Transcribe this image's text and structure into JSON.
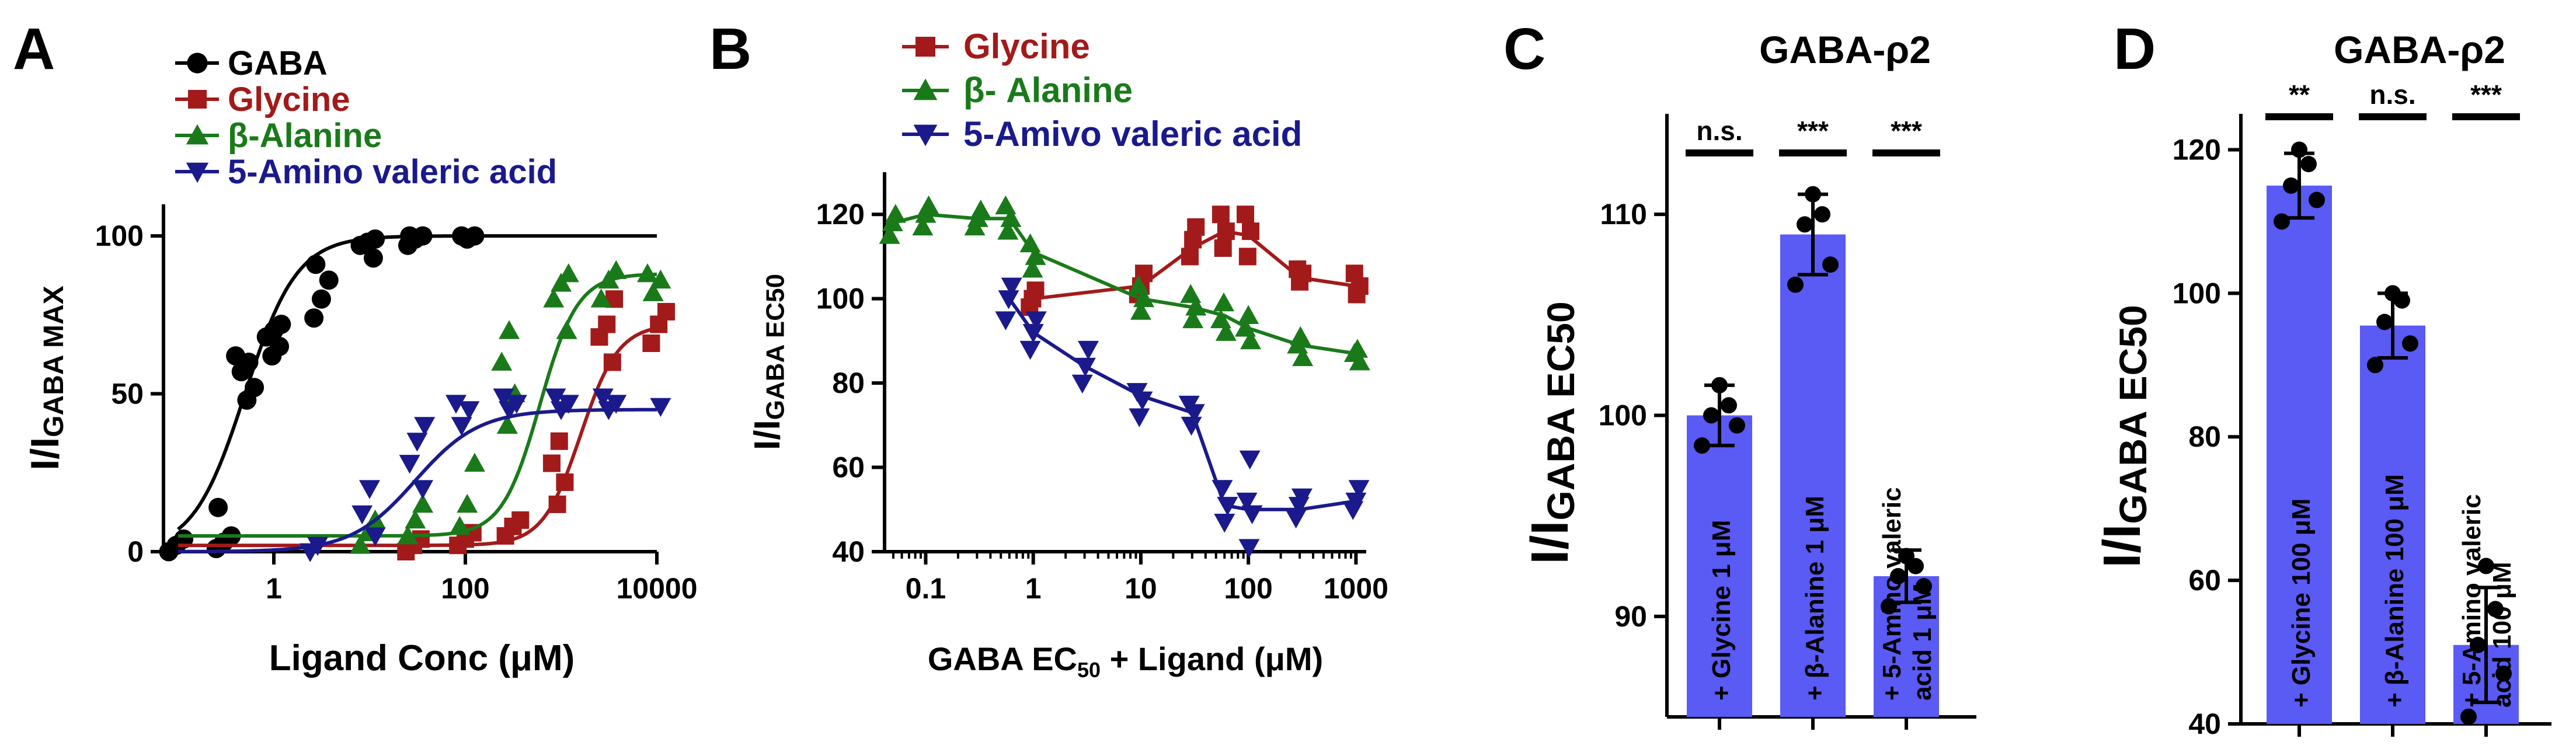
{
  "panel_letters": {
    "a": "A",
    "b": "B",
    "c": "C",
    "d": "D"
  },
  "colors": {
    "black": "#000000",
    "red": "#a31a1a",
    "green": "#1a7a1a",
    "blue": "#1a1a8c",
    "bar": "#5a5af5"
  },
  "chart_data": [
    {
      "id": "A",
      "type": "scatter",
      "title": "",
      "xscale": "log",
      "xlabel": "Ligand Conc (μM)",
      "ylabel_main": "I/I",
      "ylabel_sub": "GABA MAX",
      "xlim": [
        0.1,
        10000
      ],
      "ylim": [
        0,
        110
      ],
      "xticks": [
        1,
        100,
        10000
      ],
      "xtick_labels": [
        "1",
        "100",
        "10000"
      ],
      "yticks": [
        0,
        50,
        100
      ],
      "ytick_labels": [
        "0",
        "50",
        "100"
      ],
      "legend": {
        "position": "top-left",
        "entries": [
          "GABA",
          "Glycine",
          "β-Alanine",
          "5-Amino valeric acid"
        ]
      },
      "series": [
        {
          "name": "GABA",
          "color": "#000000",
          "marker": "circle",
          "x": [
            0.1,
            0.1,
            0.1,
            0.3,
            0.3,
            0.3,
            0.3,
            0.5,
            0.5,
            0.5,
            0.5,
            0.5,
            1,
            1,
            1,
            1,
            1,
            3,
            3,
            3,
            3,
            10,
            10,
            10,
            10,
            30,
            30,
            30,
            30,
            100,
            100,
            100
          ],
          "y": [
            0,
            2,
            4,
            1,
            3,
            5,
            14,
            48,
            52,
            57,
            60,
            62,
            62,
            65,
            68,
            70,
            72,
            74,
            80,
            86,
            91,
            93,
            97,
            98,
            99,
            97,
            99,
            100,
            100,
            99,
            100,
            100
          ],
          "fit": {
            "top": 100,
            "ec50": 0.5,
            "hill": 1.6,
            "bottom": 0
          }
        },
        {
          "name": "Glycine",
          "color": "#a31a1a",
          "marker": "square",
          "x": [
            30,
            30,
            30,
            100,
            100,
            100,
            300,
            300,
            300,
            1000,
            1000,
            1000,
            1000,
            3000,
            3000,
            3000,
            3000,
            10000,
            10000,
            10000
          ],
          "y": [
            0,
            2,
            4,
            2,
            4,
            6,
            5,
            8,
            10,
            15,
            22,
            28,
            35,
            60,
            68,
            72,
            80,
            66,
            72,
            76
          ],
          "fit": {
            "top": 72,
            "ec50": 1600,
            "hill": 2.2,
            "bottom": 2
          }
        },
        {
          "name": "β-Alanine",
          "color": "#1a7a1a",
          "marker": "triangle-up",
          "x": [
            10,
            10,
            10,
            30,
            30,
            30,
            100,
            100,
            100,
            300,
            300,
            300,
            300,
            1000,
            1000,
            1000,
            1000,
            3000,
            3000,
            3000,
            10000,
            10000,
            10000
          ],
          "y": [
            2,
            6,
            10,
            5,
            10,
            15,
            8,
            15,
            28,
            40,
            50,
            60,
            70,
            70,
            80,
            85,
            88,
            80,
            86,
            89,
            82,
            86,
            88
          ],
          "fit": {
            "top": 88,
            "ec50": 600,
            "hill": 2.2,
            "bottom": 5
          }
        },
        {
          "name": "5-Amino valeric acid",
          "color": "#1a1a8c",
          "marker": "triangle-down",
          "x": [
            3,
            3,
            10,
            10,
            10,
            30,
            30,
            30,
            30,
            100,
            100,
            100,
            300,
            300,
            300,
            1000,
            1000,
            1000,
            3000,
            3000,
            3000,
            10000
          ],
          "y": [
            0,
            2,
            5,
            12,
            20,
            20,
            28,
            35,
            40,
            40,
            45,
            47,
            45,
            47,
            49,
            45,
            47,
            49,
            45,
            47,
            49,
            46
          ],
          "fit": {
            "top": 45,
            "ec50": 30,
            "hill": 1.3,
            "bottom": 0
          }
        }
      ]
    },
    {
      "id": "B",
      "type": "line",
      "title": "",
      "xscale": "log",
      "xlabel_parts": [
        "GABA EC",
        "50",
        " + Ligand (μM)"
      ],
      "ylabel_main": "I/I",
      "ylabel_sub": "GABA EC50",
      "xlim": [
        0.05,
        1100
      ],
      "ylim": [
        40,
        130
      ],
      "xticks": [
        0.1,
        1,
        10,
        100,
        1000
      ],
      "xtick_labels": [
        "0.1",
        "1",
        "10",
        "100",
        "1000"
      ],
      "yticks": [
        40,
        60,
        80,
        100,
        120
      ],
      "ytick_labels": [
        "40",
        "60",
        "80",
        "100",
        "120"
      ],
      "legend": {
        "position": "top-left",
        "entries": [
          "Glycine",
          "β- Alanine",
          "5-Amivo valeric acid"
        ]
      },
      "series": [
        {
          "name": "Glycine",
          "color": "#a31a1a",
          "marker": "square",
          "line": {
            "x": [
              1,
              10,
              30,
              60,
              100,
              300,
              1000
            ],
            "y": [
              100,
              103,
              112,
              116,
              115,
              105,
              103
            ]
          },
          "x": [
            1,
            1,
            1,
            10,
            10,
            10,
            30,
            30,
            30,
            60,
            60,
            60,
            100,
            100,
            100,
            300,
            300,
            300,
            1000,
            1000,
            1000
          ],
          "y": [
            98,
            100,
            102,
            101,
            103,
            106,
            110,
            114,
            117,
            112,
            116,
            120,
            110,
            116,
            120,
            104,
            106,
            107,
            101,
            103,
            106
          ]
        },
        {
          "name": "β- Alanine",
          "color": "#1a7a1a",
          "marker": "triangle-up",
          "line": {
            "x": [
              0.05,
              0.1,
              0.3,
              0.6,
              1,
              10,
              30,
              60,
              100,
              300,
              1000
            ],
            "y": [
              118,
              120,
              119,
              119,
              111,
              100,
              98,
              96,
              93,
              89,
              87
            ]
          },
          "x": [
            0.05,
            0.05,
            0.05,
            0.1,
            0.1,
            0.1,
            0.3,
            0.3,
            0.3,
            0.6,
            0.6,
            0.6,
            1,
            1,
            1,
            10,
            10,
            10,
            30,
            30,
            30,
            60,
            60,
            60,
            100,
            100,
            100,
            300,
            300,
            300,
            1000,
            1000,
            1000
          ],
          "y": [
            115,
            118,
            120,
            117,
            120,
            122,
            117,
            119,
            121,
            116,
            119,
            122,
            107,
            110,
            113,
            97,
            100,
            103,
            95,
            98,
            101,
            92,
            95,
            99,
            90,
            93,
            96,
            86,
            89,
            91,
            85,
            87,
            88
          ]
        },
        {
          "name": "5-Amivo valeric acid",
          "color": "#1a1a8c",
          "marker": "triangle-down",
          "line": {
            "x": [
              0.6,
              1,
              3,
              10,
              30,
              60,
              100,
              300,
              1000
            ],
            "y": [
              100,
              92,
              84,
              77,
              73,
              51,
              50,
              50,
              52
            ]
          },
          "x": [
            0.6,
            0.6,
            0.6,
            1,
            1,
            1,
            3,
            3,
            3,
            10,
            10,
            10,
            30,
            30,
            30,
            60,
            60,
            60,
            100,
            100,
            100,
            100,
            300,
            300,
            300,
            1000,
            1000,
            1000
          ],
          "y": [
            95,
            100,
            103,
            88,
            92,
            95,
            80,
            84,
            88,
            72,
            76,
            78,
            70,
            73,
            75,
            47,
            51,
            55,
            41,
            49,
            52,
            62,
            48,
            51,
            53,
            50,
            52,
            55
          ]
        }
      ]
    },
    {
      "id": "C",
      "type": "bar",
      "title": "GABA-ρ2",
      "ylabel_main": "I/I",
      "ylabel_sub": "GABA EC50",
      "ylim": [
        85,
        115
      ],
      "yticks": [
        90,
        100,
        110
      ],
      "ytick_labels": [
        "90",
        "100",
        "110"
      ],
      "categories": [
        "+ Glycine 1 μM",
        "+ β-Alanine 1 μM",
        "+ 5-Amino valeric acid 1 μM"
      ],
      "bar_labels": [
        [
          "+ Glycine 1  μM"
        ],
        [
          "+ β-Alanine 1  μM"
        ],
        [
          "+ 5-Amino valeric",
          "acid  1  μM"
        ]
      ],
      "values": [
        100,
        109,
        92
      ],
      "errors": [
        1.5,
        2,
        1.3
      ],
      "points": [
        [
          98.5,
          99.5,
          100,
          100.5,
          101.5
        ],
        [
          106.5,
          107.5,
          109.5,
          110,
          111
        ],
        [
          90.5,
          91.5,
          92,
          92.5,
          93
        ]
      ],
      "significance": [
        "n.s.",
        "***",
        "***"
      ]
    },
    {
      "id": "D",
      "type": "bar",
      "title": "GABA-ρ2",
      "ylabel_main": "I/I",
      "ylabel_sub": "GABA EC50",
      "ylim": [
        40,
        125
      ],
      "yticks": [
        40,
        60,
        80,
        100,
        120
      ],
      "ytick_labels": [
        "40",
        "60",
        "80",
        "100",
        "120"
      ],
      "categories": [
        "+ Glycine 100 μM",
        "+ β-Alanine 100 μM",
        "+ 5-Amino valeric acid 100 μM"
      ],
      "bar_labels": [
        [
          "+ Glycine 100  μM"
        ],
        [
          "+ β-Alanine 100  μM"
        ],
        [
          "+ 5-Amino valeric",
          "acid  100  μM"
        ]
      ],
      "values": [
        115,
        95.5,
        51
      ],
      "errors": [
        4.5,
        4.5,
        8
      ],
      "points": [
        [
          110,
          113,
          115,
          118,
          120
        ],
        [
          90,
          93,
          96,
          99,
          100
        ],
        [
          41,
          47,
          51,
          56,
          62
        ]
      ],
      "significance": [
        "**",
        "n.s.",
        "***"
      ]
    }
  ]
}
